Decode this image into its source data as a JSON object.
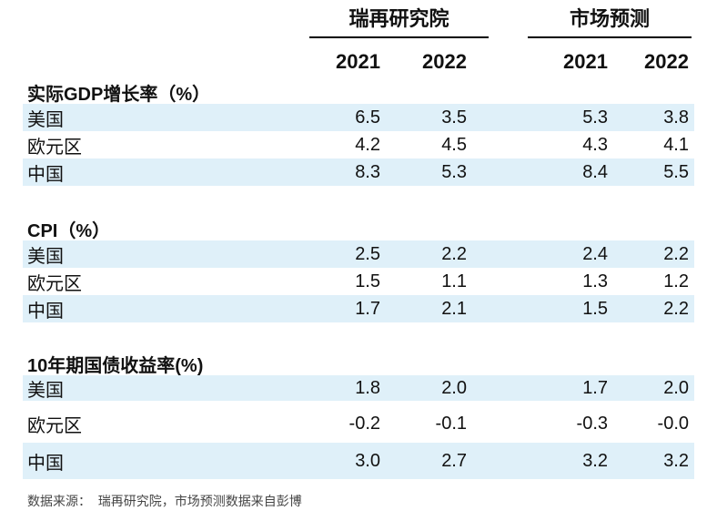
{
  "chart_data": {
    "type": "table",
    "title": "",
    "column_groups": [
      "瑞再研究院",
      "市场预测"
    ],
    "year_headers": [
      "2021",
      "2022",
      "2021",
      "2022"
    ],
    "columns": [
      "瑞再研究院 2021",
      "瑞再研究院 2022",
      "市场预测 2021",
      "市场预测 2022"
    ],
    "sections": [
      {
        "title": "实际GDP增长率（%）",
        "rows": [
          {
            "label": "美国",
            "values": [
              "6.5",
              "3.5",
              "5.3",
              "3.8"
            ],
            "highlight": true
          },
          {
            "label": "欧元区",
            "values": [
              "4.2",
              "4.5",
              "4.3",
              "4.1"
            ],
            "highlight": false
          },
          {
            "label": "中国",
            "values": [
              "8.3",
              "5.3",
              "8.4",
              "5.5"
            ],
            "highlight": true
          }
        ]
      },
      {
        "title": "CPI（%）",
        "rows": [
          {
            "label": "美国",
            "values": [
              "2.5",
              "2.2",
              "2.4",
              "2.2"
            ],
            "highlight": true
          },
          {
            "label": "欧元区",
            "values": [
              "1.5",
              "1.1",
              "1.3",
              "1.2"
            ],
            "highlight": false
          },
          {
            "label": "中国",
            "values": [
              "1.7",
              "2.1",
              "1.5",
              "2.2"
            ],
            "highlight": true
          }
        ]
      },
      {
        "title": "10年期国债收益率(%)",
        "rows": [
          {
            "label": "美国",
            "values": [
              "1.8",
              "2.0",
              "1.7",
              "2.0"
            ],
            "highlight": true
          },
          {
            "label": "欧元区",
            "values": [
              "-0.2",
              "-0.1",
              "-0.3",
              "-0.0"
            ],
            "highlight": false
          },
          {
            "label": "中国",
            "values": [
              "3.0",
              "2.7",
              "3.2",
              "3.2"
            ],
            "highlight": true
          }
        ]
      }
    ],
    "layout": "row-band highlight on 美国 and 中国 rows, numbers right-aligned, grid off"
  },
  "footer": {
    "source": "数据来源：  瑞再研究院，市场预测数据来自彭博"
  },
  "colors": {
    "highlight_band": "#dff0f9",
    "text": "#111111",
    "footer_text": "#454545",
    "rule": "#000000"
  }
}
